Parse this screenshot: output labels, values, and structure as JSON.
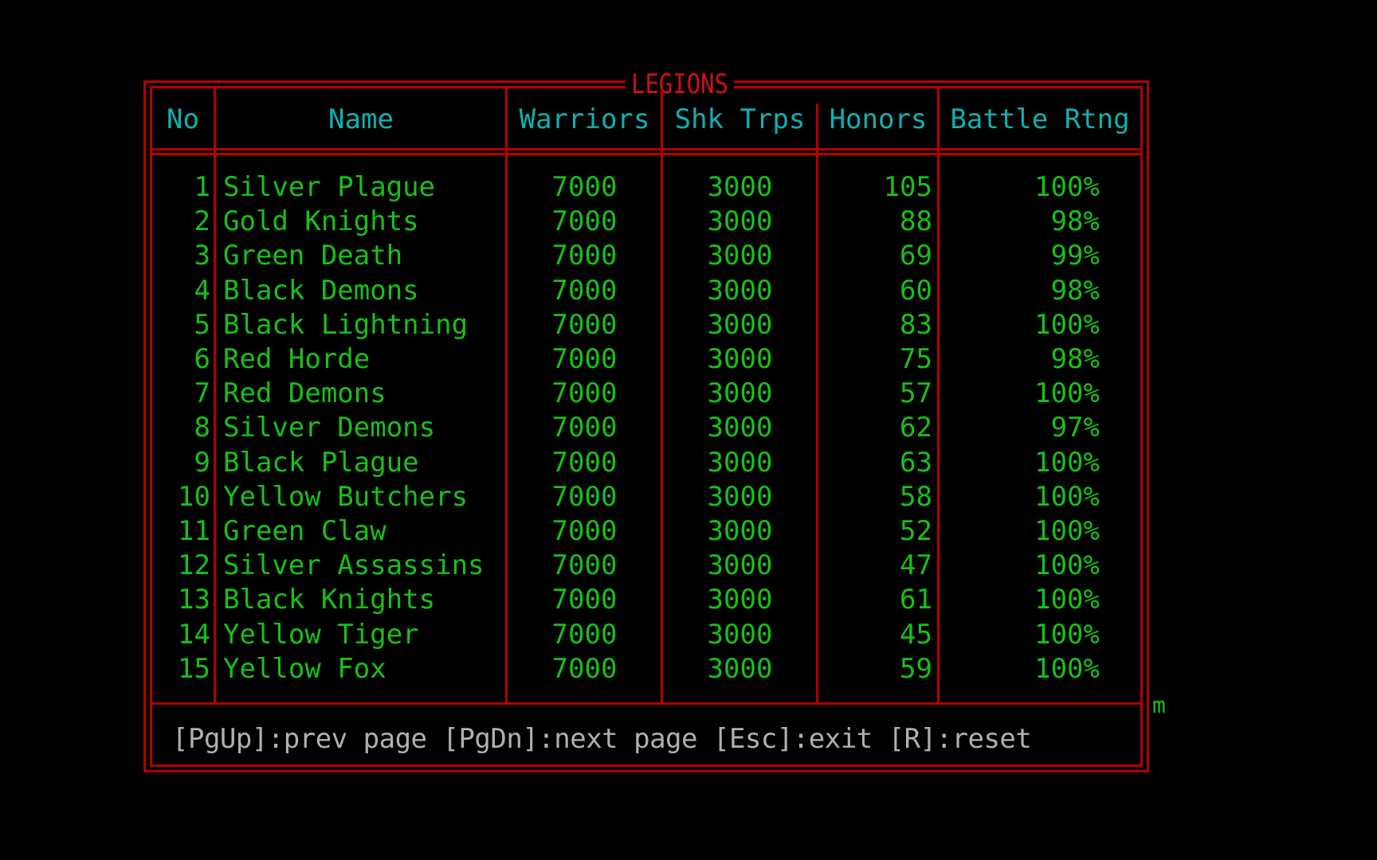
{
  "title": "LEGIONS",
  "columns": [
    "No",
    "Name",
    "Warriors",
    "Shk Trps",
    "Honors",
    "Battle Rtng"
  ],
  "rows": [
    [
      "1",
      "Silver Plague",
      "7000",
      "3000",
      "105",
      "100%"
    ],
    [
      "2",
      "Gold Knights",
      "7000",
      "3000",
      "88",
      "98%"
    ],
    [
      "3",
      "Green Death",
      "7000",
      "3000",
      "69",
      "99%"
    ],
    [
      "4",
      "Black Demons",
      "7000",
      "3000",
      "60",
      "98%"
    ],
    [
      "5",
      "Black Lightning",
      "7000",
      "3000",
      "83",
      "100%"
    ],
    [
      "6",
      "Red Horde",
      "7000",
      "3000",
      "75",
      "98%"
    ],
    [
      "7",
      "Red Demons",
      "7000",
      "3000",
      "57",
      "100%"
    ],
    [
      "8",
      "Silver Demons",
      "7000",
      "3000",
      "62",
      "97%"
    ],
    [
      "9",
      "Black Plague",
      "7000",
      "3000",
      "63",
      "100%"
    ],
    [
      "10",
      "Yellow Butchers",
      "7000",
      "3000",
      "58",
      "100%"
    ],
    [
      "11",
      "Green Claw",
      "7000",
      "3000",
      "52",
      "100%"
    ],
    [
      "12",
      "Silver Assassins",
      "7000",
      "3000",
      "47",
      "100%"
    ],
    [
      "13",
      "Black Knights",
      "7000",
      "3000",
      "61",
      "100%"
    ],
    [
      "14",
      "Yellow Tiger",
      "7000",
      "3000",
      "45",
      "100%"
    ],
    [
      "15",
      "Yellow Fox",
      "7000",
      "3000",
      "59",
      "100%"
    ]
  ],
  "footer": "[PgUp]:prev page [PgDn]:next page [Esc]:exit [R]:reset",
  "stray_char": "m",
  "colors": {
    "border": "#b40000",
    "title": "#d01010",
    "header": "#10b0b0",
    "data": "#18c018",
    "footer": "#b0b0b0",
    "background": "#000000"
  }
}
